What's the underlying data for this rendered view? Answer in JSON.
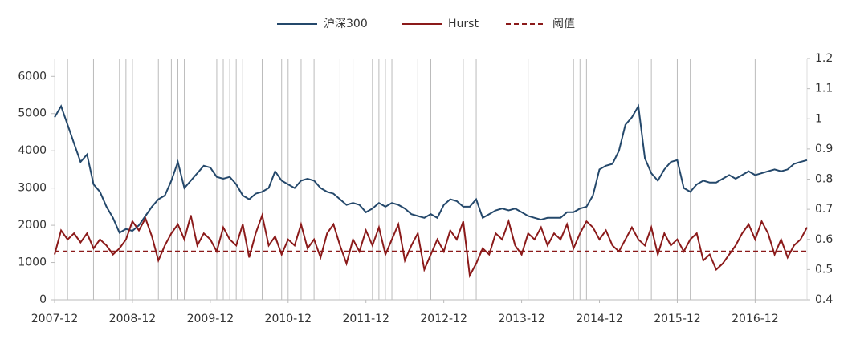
{
  "chart_data": {
    "type": "line",
    "x": [
      "2007-12",
      "2008-01",
      "2008-02",
      "2008-03",
      "2008-04",
      "2008-05",
      "2008-06",
      "2008-07",
      "2008-08",
      "2008-09",
      "2008-10",
      "2008-11",
      "2008-12",
      "2009-01",
      "2009-02",
      "2009-03",
      "2009-04",
      "2009-05",
      "2009-06",
      "2009-07",
      "2009-08",
      "2009-09",
      "2009-10",
      "2009-11",
      "2009-12",
      "2010-01",
      "2010-02",
      "2010-03",
      "2010-04",
      "2010-05",
      "2010-06",
      "2010-07",
      "2010-08",
      "2010-09",
      "2010-10",
      "2010-11",
      "2010-12",
      "2011-01",
      "2011-02",
      "2011-03",
      "2011-04",
      "2011-05",
      "2011-06",
      "2011-07",
      "2011-08",
      "2011-09",
      "2011-10",
      "2011-11",
      "2011-12",
      "2012-01",
      "2012-02",
      "2012-03",
      "2012-04",
      "2012-05",
      "2012-06",
      "2012-07",
      "2012-08",
      "2012-09",
      "2012-10",
      "2012-11",
      "2012-12",
      "2013-01",
      "2013-02",
      "2013-03",
      "2013-04",
      "2013-05",
      "2013-06",
      "2013-07",
      "2013-08",
      "2013-09",
      "2013-10",
      "2013-11",
      "2013-12",
      "2014-01",
      "2014-02",
      "2014-03",
      "2014-04",
      "2014-05",
      "2014-06",
      "2014-07",
      "2014-08",
      "2014-09",
      "2014-10",
      "2014-11",
      "2014-12",
      "2015-01",
      "2015-02",
      "2015-03",
      "2015-04",
      "2015-05",
      "2015-06",
      "2015-07",
      "2015-08",
      "2015-09",
      "2015-10",
      "2015-11",
      "2015-12",
      "2016-01",
      "2016-02",
      "2016-03",
      "2016-04",
      "2016-05",
      "2016-06",
      "2016-07",
      "2016-08",
      "2016-09",
      "2016-10",
      "2016-11",
      "2016-12",
      "2017-01",
      "2017-02",
      "2017-03",
      "2017-04",
      "2017-05",
      "2017-06",
      "2017-07",
      "2017-08"
    ],
    "series": [
      {
        "name": "沪深300",
        "color": "#24486b",
        "axis": "y",
        "values": [
          4900,
          5200,
          4700,
          4200,
          3700,
          3900,
          3100,
          2900,
          2500,
          2200,
          1800,
          1900,
          1850,
          2000,
          2250,
          2500,
          2700,
          2800,
          3200,
          3700,
          3000,
          3200,
          3400,
          3600,
          3550,
          3300,
          3250,
          3300,
          3100,
          2800,
          2700,
          2850,
          2900,
          3000,
          3450,
          3200,
          3100,
          3000,
          3200,
          3250,
          3200,
          3000,
          2900,
          2850,
          2700,
          2550,
          2600,
          2550,
          2350,
          2450,
          2600,
          2500,
          2600,
          2550,
          2450,
          2300,
          2250,
          2200,
          2300,
          2200,
          2550,
          2700,
          2650,
          2500,
          2500,
          2700,
          2200,
          2300,
          2400,
          2450,
          2400,
          2450,
          2350,
          2250,
          2200,
          2150,
          2200,
          2200,
          2200,
          2350,
          2350,
          2450,
          2500,
          2800,
          3500,
          3600,
          3650,
          4000,
          4700,
          4900,
          5200,
          3800,
          3400,
          3200,
          3500,
          3700,
          3750,
          3000,
          2900,
          3100,
          3200,
          3150,
          3150,
          3250,
          3350,
          3250,
          3350,
          3450,
          3350,
          3400,
          3450,
          3500,
          3450,
          3500,
          3650,
          3700,
          3750
        ]
      },
      {
        "name": "Hurst",
        "color": "#8b1a1a",
        "axis": "y2",
        "values": [
          0.55,
          0.63,
          0.6,
          0.62,
          0.59,
          0.62,
          0.57,
          0.6,
          0.58,
          0.55,
          0.57,
          0.6,
          0.66,
          0.63,
          0.67,
          0.61,
          0.53,
          0.58,
          0.62,
          0.65,
          0.6,
          0.68,
          0.58,
          0.62,
          0.6,
          0.56,
          0.64,
          0.6,
          0.58,
          0.65,
          0.54,
          0.62,
          0.68,
          0.58,
          0.61,
          0.55,
          0.6,
          0.58,
          0.65,
          0.57,
          0.6,
          0.54,
          0.62,
          0.65,
          0.58,
          0.52,
          0.6,
          0.56,
          0.63,
          0.58,
          0.64,
          0.55,
          0.6,
          0.65,
          0.53,
          0.58,
          0.62,
          0.5,
          0.55,
          0.6,
          0.56,
          0.63,
          0.6,
          0.66,
          0.48,
          0.52,
          0.57,
          0.55,
          0.62,
          0.6,
          0.66,
          0.58,
          0.55,
          0.62,
          0.6,
          0.64,
          0.58,
          0.62,
          0.6,
          0.65,
          0.57,
          0.62,
          0.66,
          0.64,
          0.6,
          0.63,
          0.58,
          0.56,
          0.6,
          0.64,
          0.6,
          0.58,
          0.64,
          0.55,
          0.62,
          0.58,
          0.6,
          0.56,
          0.6,
          0.62,
          0.53,
          0.55,
          0.5,
          0.52,
          0.55,
          0.58,
          0.62,
          0.65,
          0.6,
          0.66,
          0.62,
          0.55,
          0.6,
          0.54,
          0.58,
          0.6,
          0.64
        ]
      }
    ],
    "threshold": {
      "name": "阈值",
      "value": 0.56,
      "color": "#8b1a1a",
      "axis": "y2"
    },
    "events": [
      "2008-02",
      "2008-06",
      "2008-10",
      "2008-11",
      "2008-12",
      "2009-04",
      "2009-06",
      "2009-07",
      "2009-08",
      "2010-01",
      "2010-02",
      "2010-03",
      "2010-04",
      "2010-05",
      "2010-08",
      "2010-11",
      "2010-12",
      "2011-02",
      "2011-04",
      "2011-08",
      "2011-10",
      "2012-01",
      "2012-02",
      "2012-03",
      "2012-04",
      "2012-08",
      "2012-10",
      "2013-03",
      "2013-05",
      "2014-01",
      "2014-08",
      "2014-09",
      "2014-10",
      "2015-06",
      "2015-08",
      "2015-12",
      "2016-02",
      "2016-12",
      "2017-08"
    ],
    "event_color": "#bbbbbb",
    "xlim": [
      "2007-12",
      "2017-08"
    ],
    "xticks": [
      "2007-12",
      "2008-12",
      "2009-12",
      "2010-12",
      "2011-12",
      "2012-12",
      "2013-12",
      "2014-12",
      "2015-12",
      "2016-12"
    ],
    "ylim": [
      0,
      6480
    ],
    "yticks": [
      0,
      1000,
      2000,
      3000,
      4000,
      5000,
      6000
    ],
    "y2lim": [
      0.4,
      1.2
    ],
    "y2ticks": [
      0.4,
      0.5,
      0.6,
      0.7,
      0.8,
      0.9,
      1,
      1.1,
      1.2
    ],
    "legend": "top"
  }
}
